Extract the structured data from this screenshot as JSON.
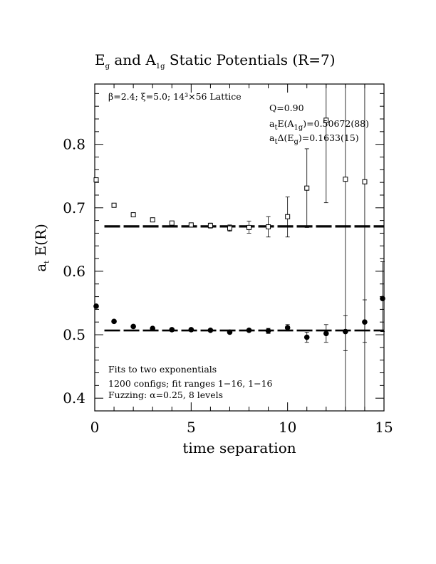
{
  "chart_data": {
    "type": "scatter",
    "title": {
      "prefix": "E",
      "prefix_sub": "g",
      "middle": " and A",
      "middle_sub": "1g",
      "suffix": " Static Potentials (R=7)"
    },
    "xlabel": "time separation",
    "ylabel": {
      "main": "a",
      "sub": "t",
      "rest": " E(R)"
    },
    "xlim": [
      0,
      15
    ],
    "ylim": [
      0.38,
      0.895
    ],
    "xticks": [
      0,
      5,
      10,
      15
    ],
    "xtick_labels": [
      "0",
      "5",
      "10",
      "15"
    ],
    "yticks": [
      0.4,
      0.5,
      0.6,
      0.7,
      0.8
    ],
    "ytick_labels": [
      "0.4",
      "0.5",
      "0.6",
      "0.7",
      "0.8"
    ],
    "grid": false,
    "series": [
      {
        "marker": "open-square",
        "points": [
          {
            "x": 0,
            "y": 0.744,
            "lo": 0.741,
            "hi": 0.747
          },
          {
            "x": 1,
            "y": 0.704,
            "lo": 0.702,
            "hi": 0.706
          },
          {
            "x": 2,
            "y": 0.689,
            "lo": 0.687,
            "hi": 0.691
          },
          {
            "x": 3,
            "y": 0.681,
            "lo": 0.679,
            "hi": 0.683
          },
          {
            "x": 4,
            "y": 0.676,
            "lo": 0.674,
            "hi": 0.678
          },
          {
            "x": 5,
            "y": 0.673,
            "lo": 0.671,
            "hi": 0.676
          },
          {
            "x": 6,
            "y": 0.672,
            "lo": 0.668,
            "hi": 0.676
          },
          {
            "x": 7,
            "y": 0.668,
            "lo": 0.663,
            "hi": 0.673
          },
          {
            "x": 8,
            "y": 0.669,
            "lo": 0.66,
            "hi": 0.679
          },
          {
            "x": 9,
            "y": 0.67,
            "lo": 0.654,
            "hi": 0.686
          },
          {
            "x": 10,
            "y": 0.686,
            "lo": 0.654,
            "hi": 0.717
          },
          {
            "x": 11,
            "y": 0.731,
            "lo": 0.669,
            "hi": 0.793
          },
          {
            "x": 12,
            "y": 0.838,
            "lo": 0.708,
            "hi": 0.895
          },
          {
            "x": 13,
            "y": 0.745,
            "lo": 0.38,
            "hi": 0.895
          },
          {
            "x": 14,
            "y": 0.741,
            "lo": 0.38,
            "hi": 0.895
          }
        ]
      },
      {
        "marker": "filled-circle",
        "points": [
          {
            "x": 0,
            "y": 0.545,
            "lo": 0.543,
            "hi": 0.547
          },
          {
            "x": 1,
            "y": 0.521,
            "lo": 0.519,
            "hi": 0.523
          },
          {
            "x": 2,
            "y": 0.513,
            "lo": 0.511,
            "hi": 0.515
          },
          {
            "x": 3,
            "y": 0.51,
            "lo": 0.508,
            "hi": 0.512
          },
          {
            "x": 4,
            "y": 0.508,
            "lo": 0.506,
            "hi": 0.51
          },
          {
            "x": 5,
            "y": 0.508,
            "lo": 0.506,
            "hi": 0.51
          },
          {
            "x": 6,
            "y": 0.507,
            "lo": 0.505,
            "hi": 0.509
          },
          {
            "x": 7,
            "y": 0.504,
            "lo": 0.502,
            "hi": 0.507
          },
          {
            "x": 8,
            "y": 0.507,
            "lo": 0.504,
            "hi": 0.51
          },
          {
            "x": 9,
            "y": 0.506,
            "lo": 0.502,
            "hi": 0.51
          },
          {
            "x": 10,
            "y": 0.511,
            "lo": 0.506,
            "hi": 0.516
          },
          {
            "x": 11,
            "y": 0.496,
            "lo": 0.488,
            "hi": 0.504
          },
          {
            "x": 12,
            "y": 0.502,
            "lo": 0.488,
            "hi": 0.516
          },
          {
            "x": 13,
            "y": 0.505,
            "lo": 0.475,
            "hi": 0.53
          },
          {
            "x": 14,
            "y": 0.52,
            "lo": 0.488,
            "hi": 0.555
          },
          {
            "x": 15,
            "y": 0.557,
            "lo": 0.505,
            "hi": 0.615
          }
        ]
      }
    ],
    "fit_lines": [
      {
        "x_range": [
          0.5,
          15
        ],
        "y": 0.67072,
        "band": [
          0.66952,
          0.67192
        ],
        "style": "dashed"
      },
      {
        "x_range": [
          0.5,
          15
        ],
        "y": 0.50672,
        "band": [
          0.50584,
          0.5076
        ],
        "style": "dashed"
      }
    ],
    "annotations": {
      "lattice": "β=2.4; ξ=5.0; 14³×56 Lattice",
      "q": "Q=0.90",
      "a1g": {
        "a": "a",
        "a_sub": "t",
        "e": "E(A",
        "e_sub": "1g",
        "value": ")=0.50672(88)"
      },
      "eg": {
        "a": "a",
        "a_sub": "t",
        "d": "Δ(E",
        "d_sub": "g",
        "value": ")=0.1633(15)"
      },
      "fits": "Fits to two exponentials",
      "configs": "1200 configs; fit ranges 1−16, 1−16",
      "fuzzing": "Fuzzing: α=0.25, 8 levels"
    }
  }
}
